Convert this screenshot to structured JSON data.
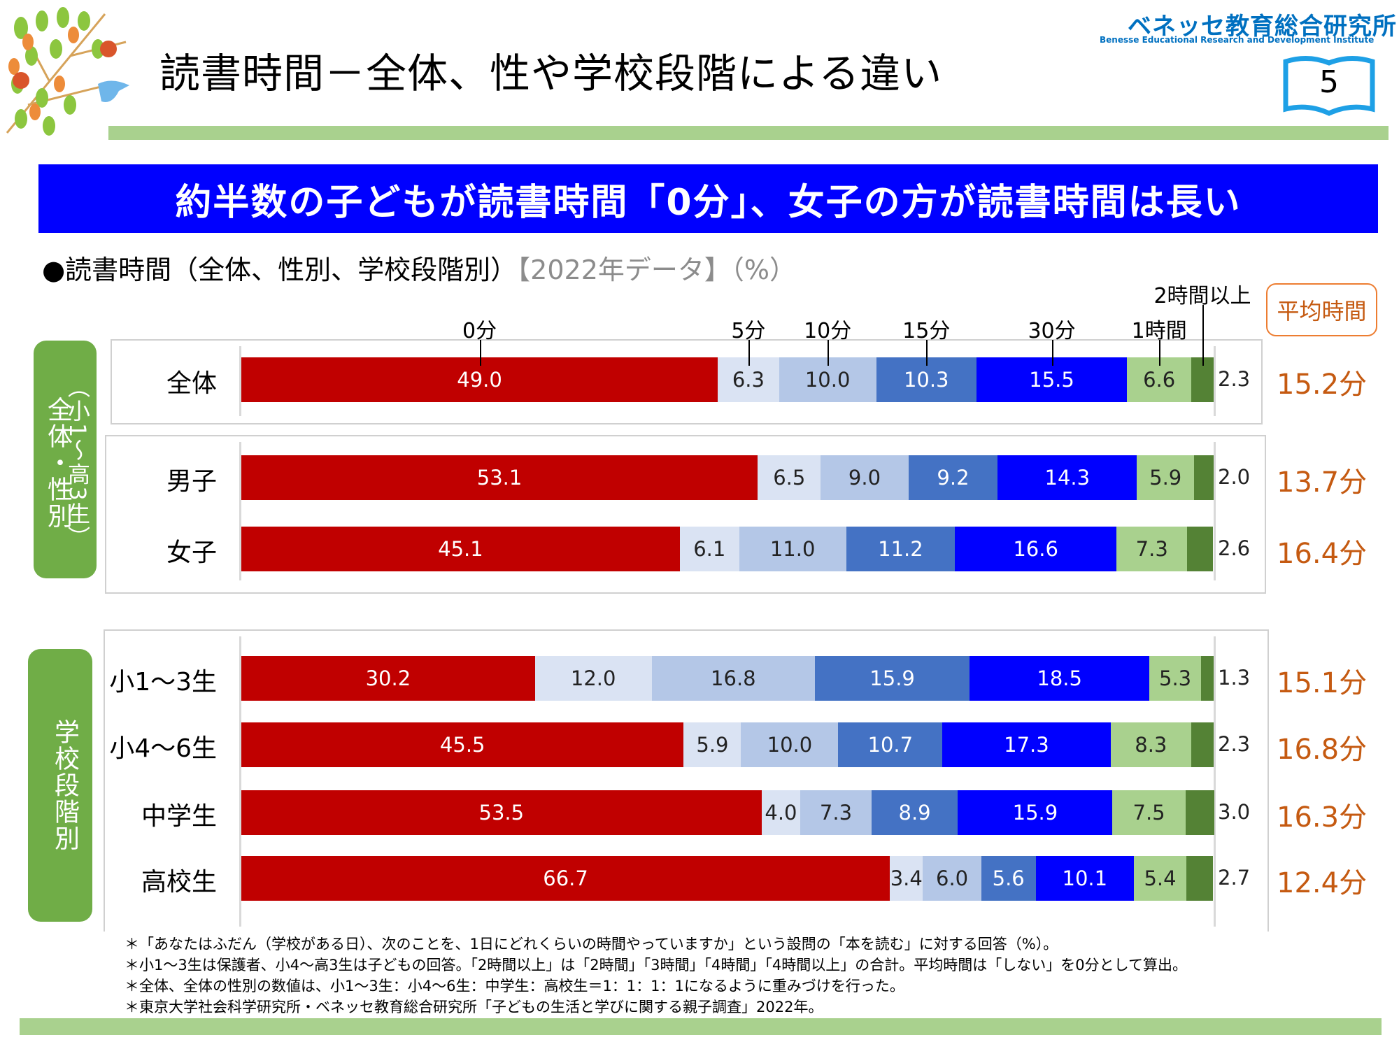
{
  "header": {
    "title": "読書時間－全体、性や学校段階による違い",
    "logo_jp": "ベネッセ教育総合研究所",
    "logo_en": "Benesse  Educational Research and Development Institute",
    "page_number": "5"
  },
  "banner": {
    "text": "約半数の子どもが読書時間「0分」、女子の方が読書時間は長い"
  },
  "subtitle": {
    "main": "●読書時間（全体、性別、学校段階別）",
    "note": "【2022年データ】（%）"
  },
  "side_tabs": {
    "overall_gender": {
      "label": "全体・性別",
      "sublabel": "（小1～高3生）"
    },
    "school_stage": {
      "label": "学校段階別"
    }
  },
  "average_header": "平均時間",
  "chart_data": {
    "type": "bar",
    "orientation": "horizontal",
    "stacked": true,
    "title": "読書時間（全体、性別、学校段階別）【2022年データ】（%）",
    "xlabel": "",
    "ylabel": "",
    "xlim": [
      0,
      100
    ],
    "unit": "%",
    "categories": [
      "全体",
      "男子",
      "女子",
      "小1～3生",
      "小4～6生",
      "中学生",
      "高校生"
    ],
    "series": [
      {
        "name": "0分",
        "color": "#c00000",
        "text_color": "#ffffff",
        "values": [
          49.0,
          53.1,
          45.1,
          30.2,
          45.5,
          53.5,
          66.7
        ]
      },
      {
        "name": "5分",
        "color": "#dae3f3",
        "text_color": "#222222",
        "values": [
          6.3,
          6.5,
          6.1,
          12.0,
          5.9,
          4.0,
          3.4
        ]
      },
      {
        "name": "10分",
        "color": "#b4c7e7",
        "text_color": "#222222",
        "values": [
          10.0,
          9.0,
          11.0,
          16.8,
          10.0,
          7.3,
          6.0
        ]
      },
      {
        "name": "15分",
        "color": "#4472c4",
        "text_color": "#ffffff",
        "values": [
          10.3,
          9.2,
          11.2,
          15.9,
          10.7,
          8.9,
          5.6
        ]
      },
      {
        "name": "30分",
        "color": "#0000ff",
        "text_color": "#ffffff",
        "values": [
          15.5,
          14.3,
          16.6,
          18.5,
          17.3,
          15.9,
          10.1
        ]
      },
      {
        "name": "1時間",
        "color": "#a9d18e",
        "text_color": "#222222",
        "values": [
          6.6,
          5.9,
          7.3,
          5.3,
          8.3,
          7.5,
          5.4
        ]
      },
      {
        "name": "2時間以上",
        "color": "#548235",
        "text_color": "#222222",
        "values": [
          2.3,
          2.0,
          2.6,
          1.3,
          2.3,
          3.0,
          2.7
        ]
      }
    ],
    "averages": [
      "15.2分",
      "13.7分",
      "16.4分",
      "15.1分",
      "16.8分",
      "16.3分",
      "12.4分"
    ],
    "groups": [
      {
        "name": "全体・性別（小1～高3生）",
        "categories": [
          "全体",
          "男子",
          "女子"
        ]
      },
      {
        "name": "学校段階別",
        "categories": [
          "小1～3生",
          "小4～6生",
          "中学生",
          "高校生"
        ]
      }
    ]
  },
  "footnotes": [
    "＊「あなたはふだん（学校がある日）、次のことを、1日にどれくらいの時間やっていますか」という設問の「本を読む」に対する回答（%）。",
    "＊小1～3生は保護者、小4～高3生は子どもの回答。「2時間以上」は「2時間」「3時間」「4時間」「4時間以上」の合計。平均時間は「しない」を0分として算出。",
    "＊全体、全体の性別の数値は、小1～3生：小4～6生：中学生：高校生＝1：1：1：1になるように重みづけを行った。",
    "＊東京大学社会科学研究所・ベネッセ教育総合研究所「子どもの生活と学びに関する親子調査」2022年。"
  ]
}
